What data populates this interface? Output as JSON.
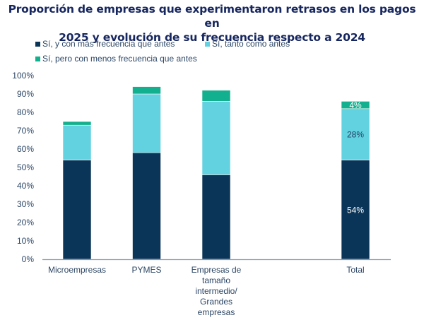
{
  "chart_data": {
    "type": "bar",
    "stacked": true,
    "title": "Proporción de empresas que experimentaron retrasos en los pagos en 2025 y evolución de su frecuencia respecto a 2024",
    "title_lines": [
      "Proporción de empresas que experimentaron retrasos en los pagos en",
      "2025 y evolución de su frecuencia respecto a 2024"
    ],
    "xlabel": "",
    "ylabel": "",
    "ylim": [
      0,
      100
    ],
    "yticks": [
      "0%",
      "10%",
      "20%",
      "30%",
      "40%",
      "50%",
      "60%",
      "70%",
      "80%",
      "90%",
      "100%"
    ],
    "categories": [
      "Microempresas",
      "PYMES",
      "Empresas de tamaño intermedio/ Grandes empresas",
      "Total"
    ],
    "category_lines": [
      [
        "Microempresas"
      ],
      [
        "PYMES"
      ],
      [
        "Empresas de",
        "tamaño",
        "intermedio/",
        "Grandes",
        "empresas"
      ],
      [
        "Total"
      ]
    ],
    "series": [
      {
        "name": "Sí, y con más frecuencia que antes",
        "color": "#0b3558",
        "label_color": "#ffffff",
        "values": [
          54,
          58,
          46,
          54
        ],
        "labels": [
          null,
          null,
          null,
          "54%"
        ]
      },
      {
        "name": "Sí, tanto como antes",
        "color": "#62d1e0",
        "label_color": "#1f4466",
        "values": [
          19,
          32,
          40,
          28
        ],
        "labels": [
          null,
          null,
          null,
          "28%"
        ]
      },
      {
        "name": "Sí, pero con menos frecuencia que antes",
        "color": "#12b08e",
        "label_color": "#ffffff",
        "values": [
          2,
          4,
          6,
          4
        ],
        "labels": [
          null,
          null,
          null,
          "4%"
        ]
      }
    ],
    "grid": false,
    "legend_position": "top-left"
  }
}
